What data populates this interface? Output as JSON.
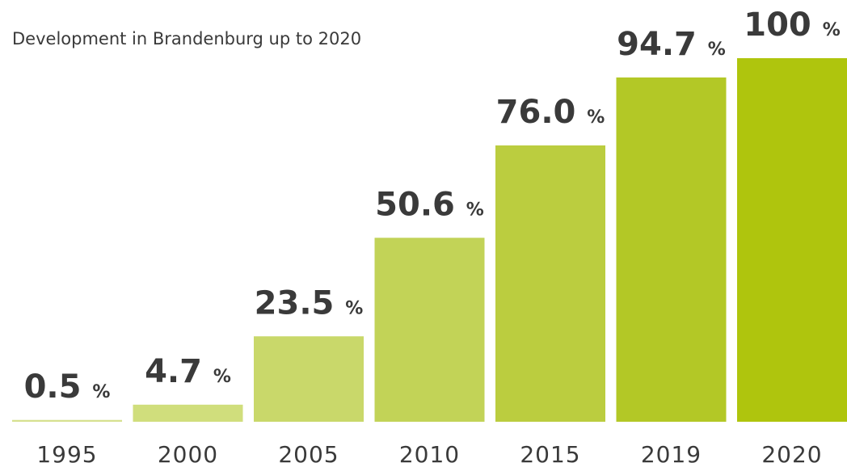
{
  "chart_data": {
    "type": "bar",
    "title": "Development in Brandenburg up to 2020",
    "categories": [
      "1995",
      "2000",
      "2005",
      "2010",
      "2015",
      "2019",
      "2020"
    ],
    "values": [
      0.5,
      4.7,
      23.5,
      50.6,
      76.0,
      94.7,
      100
    ],
    "value_labels": [
      "0.5 %",
      "4.7 %",
      "23.5 %",
      "50.6 %",
      "76.0 %",
      "94.7 %",
      "100 %"
    ],
    "colors": [
      "#d6e08f",
      "#d0de7c",
      "#c9d86a",
      "#c2d357",
      "#bbcd3f",
      "#b3c826",
      "#afc50d"
    ],
    "ylim": [
      0,
      100
    ]
  }
}
